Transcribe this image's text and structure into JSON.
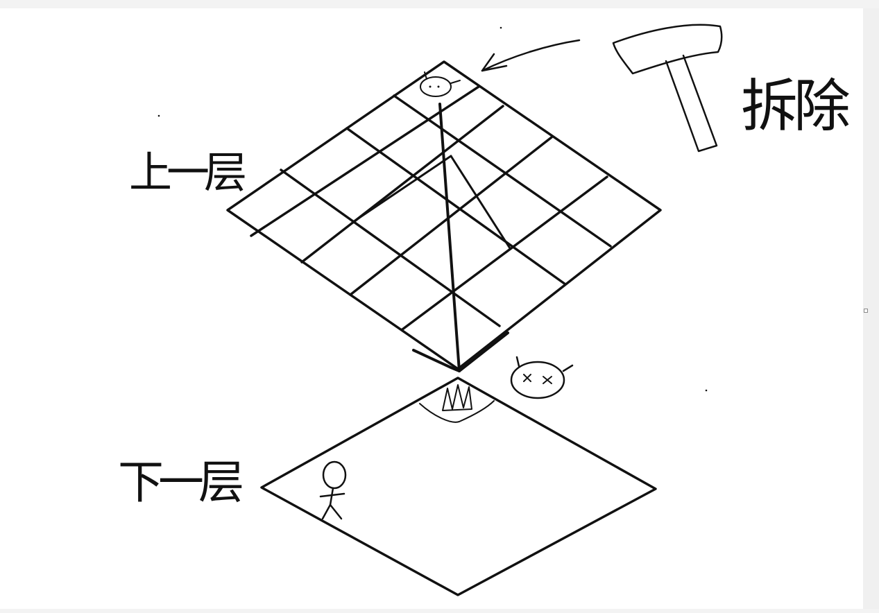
{
  "labels": {
    "upper_floor": "上一层",
    "lower_floor": "下一层",
    "demolish": "拆除"
  },
  "colors": {
    "ink": "#111111",
    "canvas": "#ffffff",
    "background": "#f3f3f3"
  },
  "icons": {
    "hammer": "hammer-icon",
    "player": "stick-figure-icon",
    "ghost_alive": "creature-face-icon",
    "ghost_dead": "dead-creature-face-icon"
  }
}
